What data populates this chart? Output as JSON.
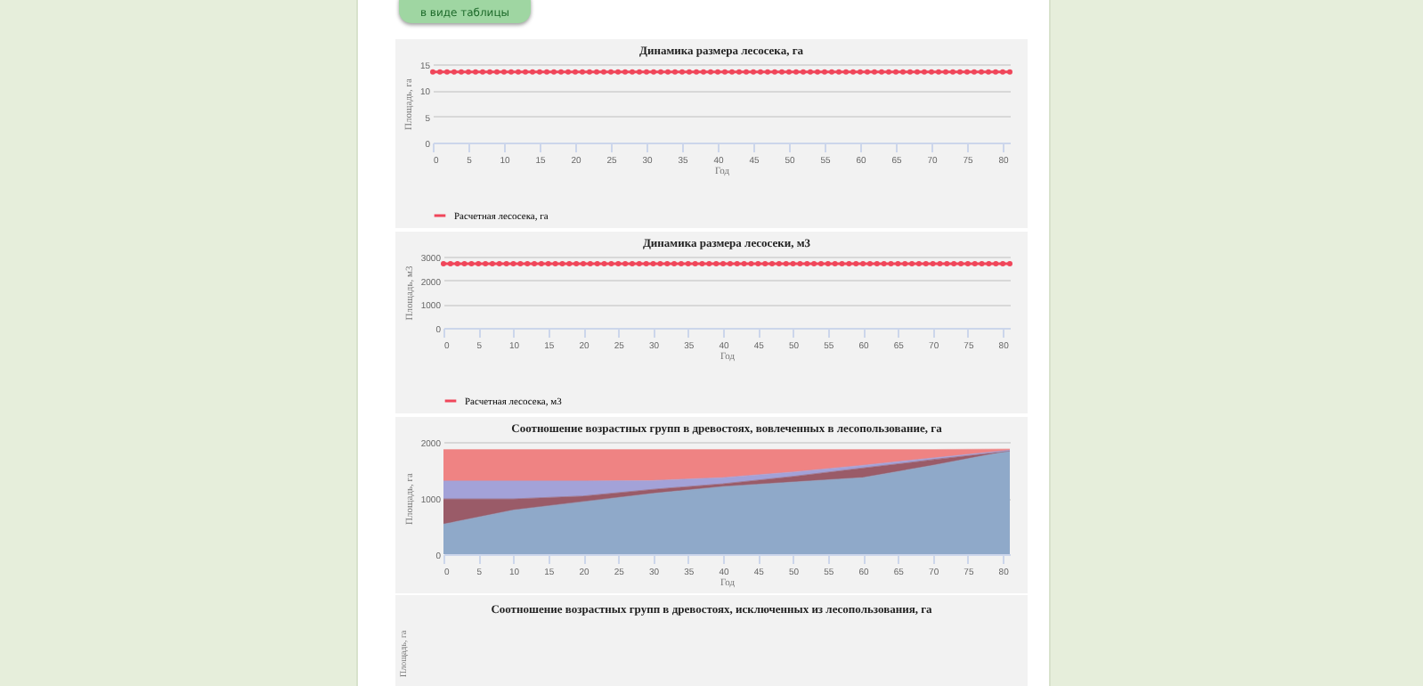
{
  "chart_data": [
    {
      "type": "line",
      "title": "Динамика размера лесосека, га",
      "xlabel": "Год",
      "ylabel": "Площадь, га",
      "annotations": [
        "в виде таблицы"
      ],
      "x": [
        0,
        1,
        2,
        3,
        4,
        5,
        6,
        7,
        8,
        9,
        10,
        11,
        12,
        13,
        14,
        15,
        16,
        17,
        18,
        19,
        20,
        21,
        22,
        23,
        24,
        25,
        26,
        27,
        28,
        29,
        30,
        31,
        32,
        33,
        34,
        35,
        36,
        37,
        38,
        39,
        40,
        41,
        42,
        43,
        44,
        45,
        46,
        47,
        48,
        49,
        50,
        51,
        52,
        53,
        54,
        55,
        56,
        57,
        58,
        59,
        60,
        61,
        62,
        63,
        64,
        65,
        66,
        67,
        68,
        69,
        70,
        71,
        72,
        73,
        74,
        75,
        76,
        77,
        78,
        79,
        80,
        81
      ],
      "series": [
        {
          "name": "Расчетная лесосека, га",
          "color": "#f0465a",
          "values": [
            13.5,
            13.5,
            13.5,
            13.5,
            13.5,
            13.5,
            13.5,
            13.5,
            13.5,
            13.5,
            13.5,
            13.5,
            13.5,
            13.5,
            13.5,
            13.5,
            13.5,
            13.5,
            13.5,
            13.5,
            13.5,
            13.5,
            13.5,
            13.5,
            13.5,
            13.5,
            13.5,
            13.5,
            13.5,
            13.5,
            13.5,
            13.5,
            13.5,
            13.5,
            13.5,
            13.5,
            13.5,
            13.5,
            13.5,
            13.5,
            13.5,
            13.5,
            13.5,
            13.5,
            13.5,
            13.5,
            13.5,
            13.5,
            13.5,
            13.5,
            13.5,
            13.5,
            13.5,
            13.5,
            13.5,
            13.5,
            13.5,
            13.5,
            13.5,
            13.5,
            13.5,
            13.5,
            13.5,
            13.5,
            13.5,
            13.5,
            13.5,
            13.5,
            13.5,
            13.5,
            13.5,
            13.5,
            13.5,
            13.5,
            13.5,
            13.5,
            13.5,
            13.5,
            13.5,
            13.5,
            13.5,
            13.5
          ]
        }
      ],
      "xlim": [
        0,
        81
      ],
      "xticks": [
        0,
        5,
        10,
        15,
        20,
        25,
        30,
        35,
        40,
        45,
        50,
        55,
        60,
        65,
        70,
        75,
        80
      ],
      "ylim": [
        0,
        15
      ],
      "yticks": [
        0,
        5,
        10,
        15
      ],
      "grid": "y",
      "legend": "bottom",
      "marker": "circle"
    },
    {
      "type": "line",
      "title": "Динамика размера лесосеки, м3",
      "xlabel": "Год",
      "ylabel": "Площадь, м3",
      "x": [
        0,
        1,
        2,
        3,
        4,
        5,
        6,
        7,
        8,
        9,
        10,
        11,
        12,
        13,
        14,
        15,
        16,
        17,
        18,
        19,
        20,
        21,
        22,
        23,
        24,
        25,
        26,
        27,
        28,
        29,
        30,
        31,
        32,
        33,
        34,
        35,
        36,
        37,
        38,
        39,
        40,
        41,
        42,
        43,
        44,
        45,
        46,
        47,
        48,
        49,
        50,
        51,
        52,
        53,
        54,
        55,
        56,
        57,
        58,
        59,
        60,
        61,
        62,
        63,
        64,
        65,
        66,
        67,
        68,
        69,
        70,
        71,
        72,
        73,
        74,
        75,
        76,
        77,
        78,
        79,
        80,
        81
      ],
      "series": [
        {
          "name": "Расчетная лесосека, м3",
          "color": "#f0465a",
          "values": [
            2700,
            2700,
            2700,
            2700,
            2700,
            2700,
            2700,
            2700,
            2700,
            2700,
            2700,
            2700,
            2700,
            2700,
            2700,
            2700,
            2700,
            2700,
            2700,
            2700,
            2700,
            2700,
            2700,
            2700,
            2700,
            2700,
            2700,
            2700,
            2700,
            2700,
            2700,
            2700,
            2700,
            2700,
            2700,
            2700,
            2700,
            2700,
            2700,
            2700,
            2700,
            2700,
            2700,
            2700,
            2700,
            2700,
            2700,
            2700,
            2700,
            2700,
            2700,
            2700,
            2700,
            2700,
            2700,
            2700,
            2700,
            2700,
            2700,
            2700,
            2700,
            2700,
            2700,
            2700,
            2700,
            2700,
            2700,
            2700,
            2700,
            2700,
            2700,
            2700,
            2700,
            2700,
            2700,
            2700,
            2700,
            2700,
            2700,
            2700,
            2700,
            2700
          ]
        }
      ],
      "xlim": [
        0,
        81
      ],
      "xticks": [
        0,
        5,
        10,
        15,
        20,
        25,
        30,
        35,
        40,
        45,
        50,
        55,
        60,
        65,
        70,
        75,
        80
      ],
      "ylim": [
        0,
        3000
      ],
      "yticks": [
        0,
        1000,
        2000,
        3000
      ],
      "grid": "y",
      "legend": "bottom",
      "marker": "circle"
    },
    {
      "type": "area",
      "title": "Соотношение возрастных групп в древостоях, вовлеченных в лесопользование, га",
      "xlabel": "Год",
      "ylabel": "Площадь, га",
      "stacked": true,
      "x": [
        0,
        10,
        20,
        30,
        40,
        50,
        60,
        70,
        81
      ],
      "series": [
        {
          "color": "#8fa9c9",
          "values": [
            530,
            780,
            930,
            1080,
            1200,
            1280,
            1360,
            1580,
            1840
          ]
        },
        {
          "color": "#9a5b68",
          "values": [
            450,
            200,
            100,
            70,
            50,
            100,
            170,
            100,
            0
          ]
        },
        {
          "color": "#a3a2d8",
          "values": [
            320,
            320,
            270,
            160,
            110,
            80,
            50,
            30,
            10
          ]
        },
        {
          "color": "#ef8383",
          "values": [
            560,
            560,
            560,
            550,
            500,
            400,
            280,
            150,
            20
          ]
        }
      ],
      "xlim": [
        0,
        81
      ],
      "xticks": [
        0,
        5,
        10,
        15,
        20,
        25,
        30,
        35,
        40,
        45,
        50,
        55,
        60,
        65,
        70,
        75,
        80
      ],
      "ylim": [
        0,
        2000
      ],
      "yticks": [
        0,
        1000,
        2000
      ],
      "grid": "y"
    },
    {
      "type": "other",
      "title": "Соотношение возрастных групп в древостоях, исключенных из лесопользования, га",
      "ylabel": "Площадь, га"
    }
  ]
}
